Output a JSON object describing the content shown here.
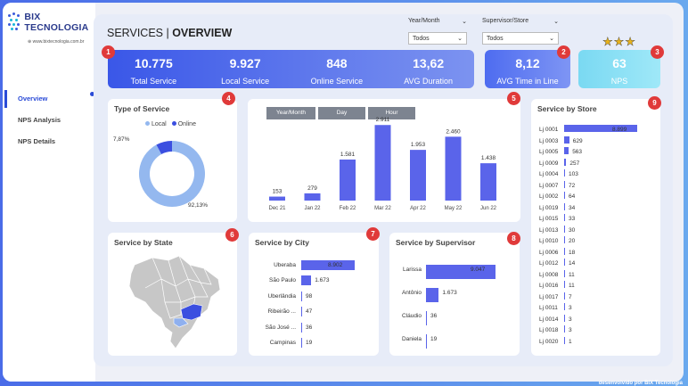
{
  "logo": {
    "brand": "BIX TECNOLOGIA",
    "site": "⊕ www.bixtecnologia.com.br"
  },
  "nav": [
    "Overview",
    "NPS Analysis",
    "NPS Details"
  ],
  "title": {
    "prefix": "SERVICES | ",
    "bold": "OVERVIEW"
  },
  "filters": [
    {
      "label": "Year/Month",
      "value": "Todos"
    },
    {
      "label": "Supervisor/Store",
      "value": "Todos"
    }
  ],
  "kpis": [
    {
      "value": "10.775",
      "label": "Total Service"
    },
    {
      "value": "9.927",
      "label": "Local Service"
    },
    {
      "value": "848",
      "label": "Online Service"
    },
    {
      "value": "13,62",
      "label": "AVG Duration"
    }
  ],
  "kpi_time": {
    "value": "8,12",
    "label": "AVG Time in Line"
  },
  "kpi_nps": {
    "value": "63",
    "label": "NPS"
  },
  "stars": "★★★",
  "badges": [
    "1",
    "2",
    "3",
    "4",
    "5",
    "6",
    "7",
    "8",
    "9"
  ],
  "type_card": {
    "title": "Type of Service",
    "legend": [
      "Local",
      "Online"
    ],
    "online_pct": "7,87%",
    "local_pct": "92,13%"
  },
  "time_card": {
    "tabs": [
      "Year/Month",
      "Day",
      "Hour"
    ]
  },
  "chart_data": [
    {
      "type": "bar",
      "categories": [
        "Dec 21",
        "Jan 22",
        "Feb 22",
        "Mar 22",
        "Apr 22",
        "May 22",
        "Jun 22"
      ],
      "values": [
        153,
        279,
        1581,
        2911,
        1953,
        2460,
        1438
      ],
      "labels": [
        "153",
        "279",
        "1.581",
        "2.911",
        "1.953",
        "2.460",
        "1.438"
      ]
    },
    {
      "type": "pie",
      "title": "Type of Service",
      "categories": [
        "Local",
        "Online"
      ],
      "values": [
        92.13,
        7.87
      ]
    },
    {
      "type": "bar",
      "title": "Service by City",
      "categories": [
        "Uberaba",
        "São Paulo",
        "Uberlândia",
        "Ribeirão ...",
        "São José ...",
        "Campinas"
      ],
      "values": [
        8902,
        1673,
        98,
        47,
        36,
        19
      ],
      "labels": [
        "8.902",
        "1.673",
        "98",
        "47",
        "36",
        "19"
      ]
    },
    {
      "type": "bar",
      "title": "Service by Supervisor",
      "categories": [
        "Larissa",
        "Antônio",
        "Cláudio",
        "Daniela"
      ],
      "values": [
        9047,
        1673,
        36,
        19
      ],
      "labels": [
        "9.047",
        "1.673",
        "36",
        "19"
      ]
    },
    {
      "type": "bar",
      "title": "Service by Store",
      "categories": [
        "Lj 0001",
        "Lj 0003",
        "Lj 0005",
        "Lj 0009",
        "Lj 0004",
        "Lj 0007",
        "Lj 0002",
        "Lj 0019",
        "Lj 0015",
        "Lj 0013",
        "Lj 0010",
        "Lj 0006",
        "Lj 0012",
        "Lj 0008",
        "Lj 0016",
        "Lj 0017",
        "Lj 0011",
        "Lj 0014",
        "Lj 0018",
        "Lj 0020"
      ],
      "values": [
        8899,
        629,
        563,
        257,
        103,
        72,
        64,
        34,
        33,
        30,
        20,
        18,
        14,
        11,
        11,
        7,
        3,
        3,
        3,
        1
      ],
      "labels": [
        "8.899",
        "629",
        "563",
        "257",
        "103",
        "72",
        "64",
        "34",
        "33",
        "30",
        "20",
        "18",
        "14",
        "11",
        "11",
        "7",
        "3",
        "3",
        "3",
        "1"
      ]
    }
  ],
  "state_card": {
    "title": "Service by State"
  },
  "city_card": {
    "title": "Service by City"
  },
  "sup_card": {
    "title": "Service by Supervisor"
  },
  "store_card": {
    "title": "Service by Store"
  },
  "footer": "desenvolvido por BIX Tecnologia",
  "colors": {
    "bar": "#5a64ea",
    "local": "#94b8ef",
    "online": "#3b4fe0",
    "badge": "#e03a3a"
  }
}
